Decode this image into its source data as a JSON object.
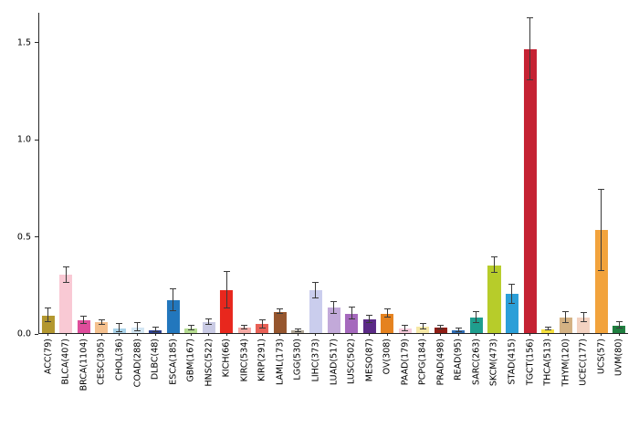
{
  "figure": {
    "background": "#ffffff",
    "axis_color": "#262626",
    "error_bar_color": "#3a3a3a"
  },
  "chart_data": {
    "type": "bar",
    "title": "",
    "xlabel": "",
    "ylabel": "",
    "ylim": [
      0,
      1.65
    ],
    "ytick_values": [
      0,
      0.5,
      1.0,
      1.5
    ],
    "ytick_labels": [
      "0.0",
      "0.5",
      "1.0",
      "1.5"
    ],
    "grid": false,
    "legend": "none",
    "error_bars": true,
    "categories": [
      "ACC(79)",
      "BLCA(407)",
      "BRCA(1104)",
      "CESC(305)",
      "CHOL(36)",
      "COAD(288)",
      "DLBC(48)",
      "ESCA(185)",
      "GBM(167)",
      "HNSC(522)",
      "KICH(66)",
      "KIRC(534)",
      "KIRP(291)",
      "LAML(173)",
      "LGG(530)",
      "LIHC(373)",
      "LUAD(517)",
      "LUSC(502)",
      "MESO(87)",
      "OV(308)",
      "PAAD(179)",
      "PCPG(184)",
      "PRAD(498)",
      "READ(95)",
      "SARC(263)",
      "SKCM(473)",
      "STAD(415)",
      "TGCT(156)",
      "THCA(513)",
      "THYM(120)",
      "UCEC(177)",
      "UCS(57)",
      "UVM(80)"
    ],
    "values": [
      0.09,
      0.3,
      0.065,
      0.055,
      0.025,
      0.03,
      0.015,
      0.17,
      0.025,
      0.055,
      0.22,
      0.03,
      0.045,
      0.11,
      0.012,
      0.22,
      0.13,
      0.1,
      0.07,
      0.1,
      0.025,
      0.035,
      0.03,
      0.015,
      0.08,
      0.35,
      0.2,
      1.46,
      0.02,
      0.08,
      0.08,
      0.53,
      0.04
    ],
    "errors": [
      0.035,
      0.04,
      0.018,
      0.012,
      0.022,
      0.02,
      0.012,
      0.055,
      0.012,
      0.014,
      0.095,
      0.01,
      0.022,
      0.01,
      0.006,
      0.04,
      0.03,
      0.03,
      0.02,
      0.022,
      0.014,
      0.014,
      0.01,
      0.008,
      0.028,
      0.04,
      0.05,
      0.16,
      0.006,
      0.028,
      0.022,
      0.21,
      0.018
    ],
    "colors": [
      "#b3972f",
      "#f9c9d4",
      "#de4d9b",
      "#f4c08e",
      "#a9d3e9",
      "#d4e7f4",
      "#2b3f8f",
      "#2277bd",
      "#b5dc90",
      "#c9cae4",
      "#e8271d",
      "#f6aaa5",
      "#e86056",
      "#96562e",
      "#b0a695",
      "#cacded",
      "#c2a9d9",
      "#a569bd",
      "#5b2a86",
      "#e5821f",
      "#f7cada",
      "#f6e8a5",
      "#8f1d15",
      "#2e6db4",
      "#1f9e8e",
      "#b7cc2a",
      "#2b9fd8",
      "#c52233",
      "#f4df3d",
      "#d3b183",
      "#f3d2c1",
      "#f2a33c",
      "#1f7f3f"
    ]
  }
}
